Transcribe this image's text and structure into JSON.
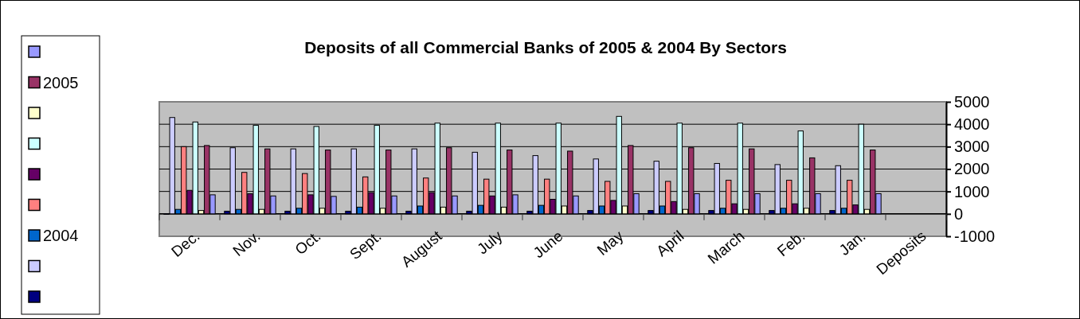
{
  "chart_data": {
    "type": "bar",
    "title": "Deposits of all Commercial Banks of 2005 & 2004 By Sectors",
    "categories": [
      "Dec.",
      "Nov.",
      "Oct.",
      "Sept.",
      "August",
      "July",
      "June",
      "May",
      "April",
      "March",
      "Feb.",
      "Jan.",
      "Deposits"
    ],
    "series": [
      {
        "color": "#000080",
        "values": [
          -20,
          120,
          120,
          120,
          120,
          120,
          120,
          150,
          150,
          150,
          150,
          150,
          null
        ]
      },
      {
        "color": "#ccccff",
        "values": [
          4300,
          2950,
          2900,
          2900,
          2900,
          2750,
          2600,
          2450,
          2350,
          2250,
          2200,
          2150,
          null
        ]
      },
      {
        "name": "2004",
        "color": "#0066cc",
        "values": [
          200,
          200,
          250,
          300,
          350,
          380,
          380,
          350,
          350,
          250,
          250,
          250,
          null
        ]
      },
      {
        "color": "#ff8080",
        "values": [
          3000,
          1850,
          1800,
          1650,
          1600,
          1550,
          1550,
          1450,
          1450,
          1500,
          1500,
          1500,
          null
        ]
      },
      {
        "color": "#660066",
        "values": [
          1050,
          900,
          850,
          950,
          950,
          800,
          650,
          600,
          550,
          450,
          450,
          400,
          null
        ]
      },
      {
        "color": "#ccffff",
        "values": [
          4100,
          3950,
          3900,
          3950,
          4050,
          4050,
          4050,
          4350,
          4050,
          4050,
          3700,
          4000,
          null
        ]
      },
      {
        "color": "#ffffcc",
        "values": [
          150,
          200,
          250,
          250,
          300,
          300,
          350,
          350,
          200,
          200,
          250,
          200,
          null
        ]
      },
      {
        "name": "2005",
        "color": "#993366",
        "values": [
          3050,
          2900,
          2850,
          2850,
          2950,
          2850,
          2800,
          3050,
          2950,
          2900,
          2500,
          2850,
          null
        ]
      },
      {
        "color": "#9999ff",
        "values": [
          850,
          800,
          780,
          800,
          800,
          850,
          800,
          900,
          900,
          900,
          900,
          900,
          null
        ]
      }
    ],
    "ylim": [
      -1000,
      5000
    ],
    "yticks": [
      -1000,
      0,
      1000,
      2000,
      3000,
      4000,
      5000
    ],
    "grid": "y",
    "legend": "left"
  }
}
